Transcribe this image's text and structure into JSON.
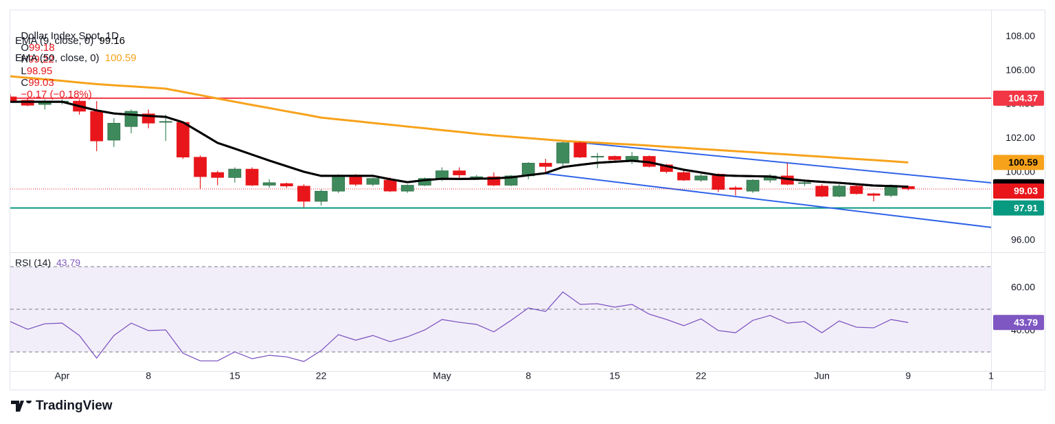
{
  "header": {
    "symbol": "Dollar Index Spot, 1D",
    "ohlc_labels": [
      "O",
      "H",
      "L",
      "C"
    ],
    "change": "−0.17 (−0.18%)"
  },
  "chart_data": [
    {
      "type": "candlestick",
      "candles": {
        "open": [
          104.45,
          104.25,
          104.0,
          104.15,
          104.2,
          103.6,
          101.9,
          102.7,
          103.45,
          102.95,
          102.95,
          100.9,
          100.0,
          99.7,
          100.2,
          99.25,
          99.35,
          99.2,
          98.3,
          98.9,
          99.85,
          99.3,
          99.55,
          98.9,
          99.25,
          99.65,
          100.1,
          99.7,
          99.75,
          99.25,
          99.8,
          100.55,
          100.55,
          101.75,
          100.9,
          100.95,
          100.7,
          100.95,
          100.45,
          100.0,
          99.55,
          99.9,
          99.1,
          98.9,
          99.55,
          99.8,
          99.35,
          99.2,
          98.6,
          99.2,
          98.75,
          98.65,
          99.18
        ],
        "high": [
          104.6,
          104.4,
          104.3,
          104.3,
          104.3,
          104.2,
          103.2,
          103.7,
          103.7,
          103.4,
          103.0,
          101.0,
          100.1,
          100.3,
          100.3,
          99.6,
          99.4,
          99.3,
          99.0,
          99.9,
          99.9,
          99.7,
          99.7,
          99.3,
          99.7,
          100.3,
          100.3,
          99.85,
          100.0,
          99.85,
          100.6,
          100.8,
          101.8,
          101.8,
          101.15,
          101.0,
          101.2,
          101.0,
          100.5,
          100.1,
          99.9,
          99.95,
          99.2,
          99.6,
          99.9,
          100.55,
          99.6,
          99.3,
          99.3,
          99.35,
          98.8,
          99.3,
          99.22
        ],
        "low": [
          104.1,
          103.9,
          103.7,
          104.0,
          103.4,
          101.25,
          101.5,
          102.3,
          102.6,
          101.85,
          100.8,
          99.05,
          99.25,
          99.4,
          99.2,
          99.1,
          99.1,
          97.95,
          98.05,
          98.8,
          99.2,
          99.2,
          98.85,
          98.8,
          99.2,
          99.5,
          99.6,
          99.6,
          99.2,
          99.2,
          99.6,
          100.0,
          100.4,
          100.85,
          100.25,
          100.7,
          100.5,
          100.3,
          99.95,
          99.5,
          99.45,
          98.85,
          98.65,
          98.8,
          99.4,
          99.25,
          99.2,
          98.55,
          98.55,
          98.7,
          98.3,
          98.55,
          98.95
        ],
        "close": [
          104.2,
          103.95,
          104.15,
          104.2,
          103.6,
          101.85,
          102.9,
          103.6,
          102.9,
          103.0,
          100.9,
          99.75,
          99.7,
          100.2,
          99.25,
          99.4,
          99.2,
          98.3,
          98.9,
          99.8,
          99.3,
          99.65,
          98.9,
          99.25,
          99.65,
          100.1,
          99.85,
          99.75,
          99.25,
          99.8,
          100.55,
          100.35,
          101.75,
          100.9,
          100.95,
          100.75,
          100.95,
          100.35,
          100.05,
          99.55,
          99.8,
          99.0,
          99.0,
          99.55,
          99.8,
          99.3,
          99.4,
          98.6,
          99.2,
          98.75,
          98.65,
          99.25,
          99.03
        ]
      },
      "up_color": "#3f8a5c",
      "down_color": "#e8161b",
      "series": [
        {
          "name": "EMA (9, close, 0)",
          "color": "#000000",
          "values": [
            104.16,
            104.16,
            104.16,
            104.16,
            103.9,
            103.65,
            103.47,
            103.4,
            103.33,
            103.27,
            102.95,
            102.35,
            101.74,
            101.4,
            101.05,
            100.7,
            100.37,
            100.04,
            99.8,
            99.8,
            99.8,
            99.8,
            99.6,
            99.43,
            99.55,
            99.63,
            99.62,
            99.63,
            99.65,
            99.71,
            99.84,
            99.96,
            100.32,
            100.45,
            100.57,
            100.63,
            100.69,
            100.6,
            100.38,
            100.16,
            100.0,
            99.84,
            99.8,
            99.78,
            99.76,
            99.62,
            99.52,
            99.45,
            99.39,
            99.31,
            99.23,
            99.2,
            99.16
          ]
        },
        {
          "name": "EMA (50, close, 0)",
          "color": "#f7a21b",
          "values": [
            105.66,
            105.57,
            105.48,
            105.39,
            105.29,
            105.2,
            105.13,
            105.07,
            105.0,
            104.93,
            104.74,
            104.55,
            104.35,
            104.16,
            103.97,
            103.79,
            103.6,
            103.42,
            103.23,
            103.12,
            103.02,
            102.91,
            102.81,
            102.7,
            102.6,
            102.49,
            102.39,
            102.28,
            102.18,
            102.1,
            102.02,
            101.94,
            101.86,
            101.8,
            101.75,
            101.69,
            101.64,
            101.58,
            101.51,
            101.45,
            101.38,
            101.32,
            101.25,
            101.19,
            101.12,
            101.06,
            100.99,
            100.93,
            100.86,
            100.79,
            100.73,
            100.66,
            100.59
          ]
        }
      ],
      "levels": [
        {
          "value": 104.37,
          "color": "#f23645"
        },
        {
          "value": 97.91,
          "color": "#089981"
        }
      ],
      "trendlines": [
        {
          "color": "#2f63e8",
          "x": [
            32.8,
            56.8
          ],
          "y": [
            101.78,
            99.39
          ]
        },
        {
          "color": "#2f63e8",
          "x": [
            30.8,
            56.8
          ],
          "y": [
            99.96,
            96.77
          ]
        }
      ],
      "xlim": [
        0,
        56.8
      ],
      "xticks": [
        {
          "value": 3,
          "label": "Apr"
        },
        {
          "value": 8,
          "label": "8"
        },
        {
          "value": 13,
          "label": "15"
        },
        {
          "value": 18,
          "label": "22"
        },
        {
          "value": 25,
          "label": "May"
        },
        {
          "value": 30,
          "label": "8"
        },
        {
          "value": 35,
          "label": "15"
        },
        {
          "value": 40,
          "label": "22"
        },
        {
          "value": 47,
          "label": "Jun"
        },
        {
          "value": 52,
          "label": "9"
        },
        {
          "value": 56.8,
          "label": "1"
        }
      ],
      "ylim": [
        95.39,
        109.54
      ],
      "yticks": [
        {
          "value": 96,
          "label": "96.00"
        },
        {
          "value": 98,
          "label": "98.00"
        },
        {
          "value": 100,
          "label": "100.00"
        },
        {
          "value": 102,
          "label": "102.00"
        },
        {
          "value": 104,
          "label": "104.00"
        },
        {
          "value": 106,
          "label": "106.00"
        },
        {
          "value": 108,
          "label": "108.00"
        }
      ]
    },
    {
      "type": "line",
      "name": "RSI (14)",
      "color": "#7e57c2",
      "values": [
        44.2,
        40.6,
        43.2,
        43.5,
        37.7,
        27.1,
        37.7,
        43.5,
        40.0,
        40.3,
        29.4,
        25.8,
        25.8,
        30.0,
        26.8,
        28.4,
        27.7,
        25.5,
        30.6,
        38.1,
        35.5,
        37.7,
        34.8,
        37.1,
        40.3,
        45.2,
        43.9,
        42.9,
        39.4,
        44.8,
        50.6,
        49.0,
        58.1,
        52.3,
        52.6,
        51.0,
        52.3,
        47.7,
        45.2,
        42.3,
        45.5,
        40.0,
        39.0,
        44.8,
        47.1,
        43.5,
        44.2,
        39.0,
        44.5,
        41.6,
        41.3,
        45.2,
        43.79
      ],
      "band": [
        30,
        70
      ],
      "midline": 50,
      "ylim": [
        21,
        75.8
      ],
      "yticks": [
        {
          "value": 40,
          "label": "40.00"
        },
        {
          "value": 60,
          "label": "60.00"
        }
      ]
    }
  ],
  "branding": "TradingView"
}
